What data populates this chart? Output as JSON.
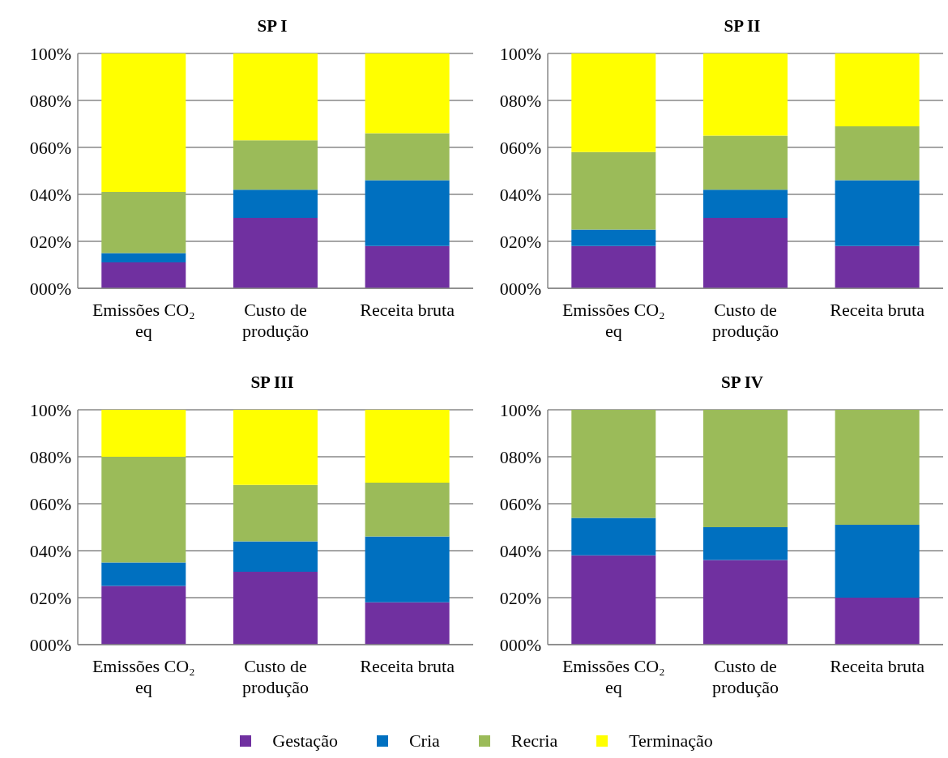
{
  "chart_data": [
    {
      "type": "bar",
      "title": "SP I",
      "stacked": true,
      "categories": [
        "Emissões CO₂ eq",
        "Custo de produção",
        "Receita bruta"
      ],
      "ylim": [
        0,
        100
      ],
      "yticks": [
        {
          "value": 0,
          "label": "000%"
        },
        {
          "value": 20,
          "label": "020%"
        },
        {
          "value": 40,
          "label": "040%"
        },
        {
          "value": 60,
          "label": "060%"
        },
        {
          "value": 80,
          "label": "080%"
        },
        {
          "value": 100,
          "label": "100%"
        }
      ],
      "grid": "y",
      "legend": "bottom",
      "series": [
        {
          "name": "Gestação",
          "color": "#7030a0",
          "values": [
            11,
            30,
            18
          ]
        },
        {
          "name": "Cria",
          "color": "#0070c0",
          "values": [
            4,
            12,
            28
          ]
        },
        {
          "name": "Recria",
          "color": "#9bbb59",
          "values": [
            26,
            21,
            20
          ]
        },
        {
          "name": "Terminação",
          "color": "#ffff00",
          "values": [
            59,
            37,
            34
          ]
        }
      ]
    },
    {
      "type": "bar",
      "title": "SP II",
      "stacked": true,
      "categories": [
        "Emissões CO₂ eq",
        "Custo de produção",
        "Receita bruta"
      ],
      "ylim": [
        0,
        100
      ],
      "yticks": [
        {
          "value": 0,
          "label": "000%"
        },
        {
          "value": 20,
          "label": "020%"
        },
        {
          "value": 40,
          "label": "040%"
        },
        {
          "value": 60,
          "label": "060%"
        },
        {
          "value": 80,
          "label": "080%"
        },
        {
          "value": 100,
          "label": "100%"
        }
      ],
      "grid": "y",
      "legend": "bottom",
      "series": [
        {
          "name": "Gestação",
          "color": "#7030a0",
          "values": [
            18,
            30,
            18
          ]
        },
        {
          "name": "Cria",
          "color": "#0070c0",
          "values": [
            7,
            12,
            28
          ]
        },
        {
          "name": "Recria",
          "color": "#9bbb59",
          "values": [
            33,
            23,
            23
          ]
        },
        {
          "name": "Terminação",
          "color": "#ffff00",
          "values": [
            42,
            35,
            31
          ]
        }
      ]
    },
    {
      "type": "bar",
      "title": "SP III",
      "stacked": true,
      "categories": [
        "Emissões CO₂ eq",
        "Custo de produção",
        "Receita bruta"
      ],
      "ylim": [
        0,
        100
      ],
      "yticks": [
        {
          "value": 0,
          "label": "000%"
        },
        {
          "value": 20,
          "label": "020%"
        },
        {
          "value": 40,
          "label": "040%"
        },
        {
          "value": 60,
          "label": "060%"
        },
        {
          "value": 80,
          "label": "080%"
        },
        {
          "value": 100,
          "label": "100%"
        }
      ],
      "grid": "y",
      "legend": "bottom",
      "series": [
        {
          "name": "Gestação",
          "color": "#7030a0",
          "values": [
            25,
            31,
            18
          ]
        },
        {
          "name": "Cria",
          "color": "#0070c0",
          "values": [
            10,
            13,
            28
          ]
        },
        {
          "name": "Recria",
          "color": "#9bbb59",
          "values": [
            45,
            24,
            23
          ]
        },
        {
          "name": "Terminação",
          "color": "#ffff00",
          "values": [
            20,
            32,
            31
          ]
        }
      ]
    },
    {
      "type": "bar",
      "title": "SP IV",
      "stacked": true,
      "categories": [
        "Emissões CO₂ eq",
        "Custo de produção",
        "Receita bruta"
      ],
      "ylim": [
        0,
        100
      ],
      "yticks": [
        {
          "value": 0,
          "label": "000%"
        },
        {
          "value": 20,
          "label": "020%"
        },
        {
          "value": 40,
          "label": "040%"
        },
        {
          "value": 60,
          "label": "060%"
        },
        {
          "value": 80,
          "label": "080%"
        },
        {
          "value": 100,
          "label": "100%"
        }
      ],
      "grid": "y",
      "legend": "bottom",
      "series": [
        {
          "name": "Gestação",
          "color": "#7030a0",
          "values": [
            38,
            36,
            20
          ]
        },
        {
          "name": "Cria",
          "color": "#0070c0",
          "values": [
            16,
            14,
            31
          ]
        },
        {
          "name": "Recria",
          "color": "#9bbb59",
          "values": [
            46,
            50,
            49
          ]
        }
      ]
    }
  ]
}
